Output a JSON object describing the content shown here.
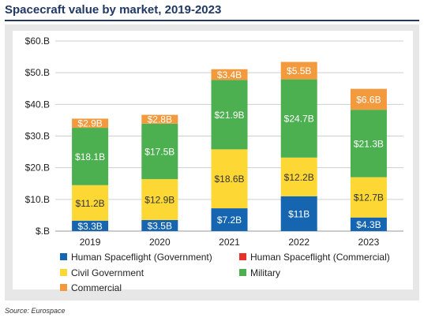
{
  "title": "Spacecraft value by market, 2019-2023",
  "source": "Source: Eurospace",
  "chart_data": {
    "type": "bar",
    "stacked": true,
    "categories": [
      "2019",
      "2020",
      "2021",
      "2022",
      "2023"
    ],
    "ylim": [
      0,
      60
    ],
    "yticks": [
      0,
      10,
      20,
      30,
      40,
      50,
      60
    ],
    "ytick_labels": [
      "$.B",
      "$10.B",
      "$20.B",
      "$30.B",
      "$40.B",
      "$50.B",
      "$60.B"
    ],
    "grid": true,
    "legend_position": "bottom",
    "series": [
      {
        "name": "Human Spaceflight (Government)",
        "color": "#1565b0",
        "values": [
          3.3,
          3.5,
          7.2,
          11.0,
          4.3
        ],
        "labels": [
          "$3.3B",
          "$3.5B",
          "$7.2B",
          "$11B",
          "$4.3B"
        ]
      },
      {
        "name": "Human Spaceflight (Commercial)",
        "color": "#e8312a",
        "values": [
          0,
          0,
          0,
          0,
          0
        ],
        "labels": [
          "",
          "",
          "",
          "",
          ""
        ]
      },
      {
        "name": "Civil Government",
        "color": "#fdd835",
        "values": [
          11.2,
          12.9,
          18.6,
          12.2,
          12.7
        ],
        "labels": [
          "$11.2B",
          "$12.9B",
          "$18.6B",
          "$12.2B",
          "$12.7B"
        ]
      },
      {
        "name": "Military",
        "color": "#4caf50",
        "values": [
          18.1,
          17.5,
          21.9,
          24.7,
          21.3
        ],
        "labels": [
          "$18.1B",
          "$17.5B",
          "$21.9B",
          "$24.7B",
          "$21.3B"
        ]
      },
      {
        "name": "Commercial",
        "color": "#f39a3e",
        "values": [
          2.9,
          2.8,
          3.4,
          5.5,
          6.6
        ],
        "labels": [
          "$2.9B",
          "$2.8B",
          "$3.4B",
          "$5.5B",
          "$6.6B"
        ]
      }
    ]
  }
}
